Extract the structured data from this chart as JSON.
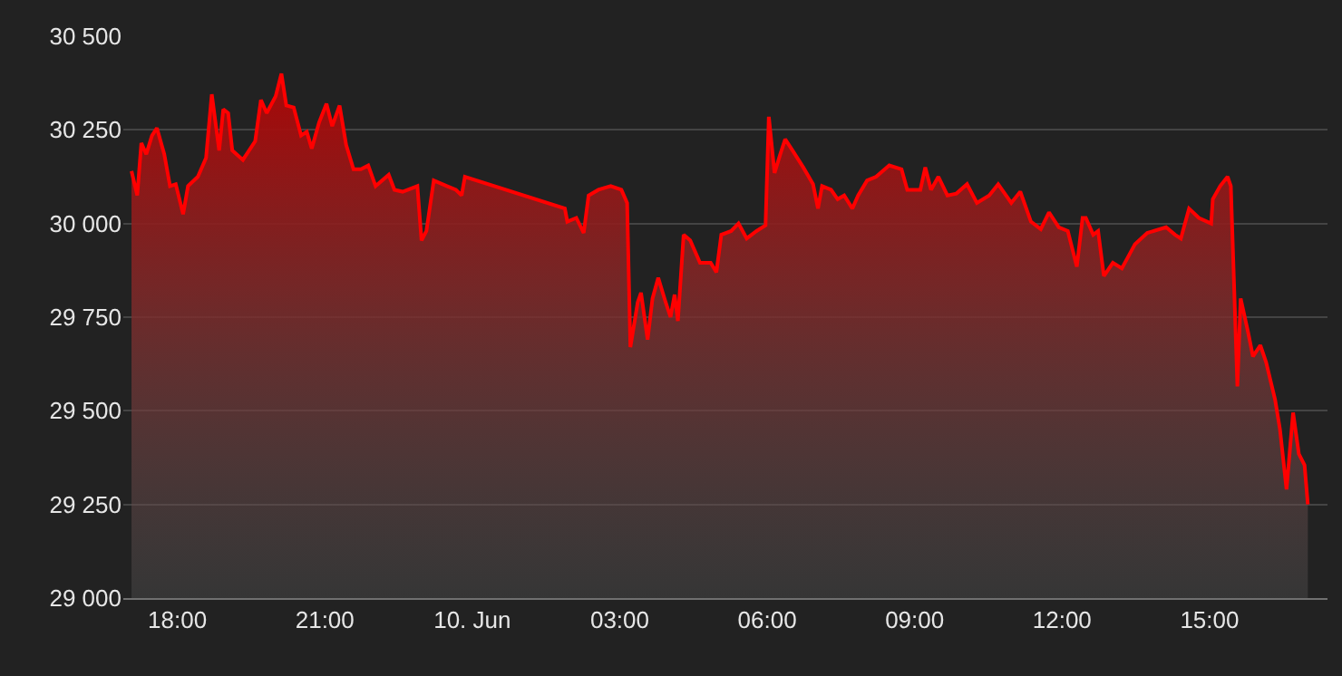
{
  "chart_data": {
    "type": "area",
    "x": [
      "--06-09T17:04",
      "--06-09T17:11",
      "--06-09T17:16",
      "--06-09T17:22",
      "--06-09T17:29",
      "--06-09T17:35",
      "--06-09T17:44",
      "--06-09T17:51",
      "--06-09T17:58",
      "--06-09T18:07",
      "--06-09T18:13",
      "--06-09T18:25",
      "--06-09T18:35",
      "--06-09T18:42",
      "--06-09T18:51",
      "--06-09T18:56",
      "--06-09T19:02",
      "--06-09T19:07",
      "--06-09T19:20",
      "--06-09T19:35",
      "--06-09T19:42",
      "--06-09T19:49",
      "--06-09T20:00",
      "--06-09T20:07",
      "--06-09T20:13",
      "--06-09T20:22",
      "--06-09T20:31",
      "--06-09T20:38",
      "--06-09T20:44",
      "--06-09T20:53",
      "--06-09T21:02",
      "--06-09T21:09",
      "--06-09T21:18",
      "--06-09T21:26",
      "--06-09T21:35",
      "--06-09T21:44",
      "--06-09T21:53",
      "--06-09T22:02",
      "--06-09T22:18",
      "--06-09T22:25",
      "--06-09T22:35",
      "--06-09T22:53",
      "--06-09T22:58",
      "--06-09T23:04",
      "--06-09T23:13",
      "--06-09T23:29",
      "--06-09T23:40",
      "--06-09T23:47",
      "--06-09T23:51",
      "--06-10T01:53",
      "--06-10T01:56",
      "--06-10T02:07",
      "--06-10T02:16",
      "--06-10T02:22",
      "--06-10T02:34",
      "--06-10T02:49",
      "--06-10T03:02",
      "--06-10T03:09",
      "--06-10T03:13",
      "--06-10T03:22",
      "--06-10T03:26",
      "--06-10T03:34",
      "--06-10T03:40",
      "--06-10T03:47",
      "--06-10T03:56",
      "--06-10T04:02",
      "--06-10T04:07",
      "--06-10T04:11",
      "--06-10T04:18",
      "--06-10T04:26",
      "--06-10T04:38",
      "--06-10T04:51",
      "--06-10T04:58",
      "--06-10T05:04",
      "--06-10T05:16",
      "--06-10T05:25",
      "--06-10T05:35",
      "--06-10T05:47",
      "--06-10T05:58",
      "--06-10T06:02",
      "--06-10T06:09",
      "--06-10T06:16",
      "--06-10T06:22",
      "--06-10T06:31",
      "--06-10T06:44",
      "--06-10T06:56",
      "--06-10T07:02",
      "--06-10T07:07",
      "--06-10T07:18",
      "--06-10T07:26",
      "--06-10T07:34",
      "--06-10T07:44",
      "--06-10T07:51",
      "--06-10T08:02",
      "--06-10T08:13",
      "--06-10T08:29",
      "--06-10T08:44",
      "--06-10T08:51",
      "--06-10T09:07",
      "--06-10T09:13",
      "--06-10T09:20",
      "--06-10T09:29",
      "--06-10T09:40",
      "--06-10T09:51",
      "--06-10T10:04",
      "--06-10T10:16",
      "--06-10T10:31",
      "--06-10T10:42",
      "--06-10T10:58",
      "--06-10T11:09",
      "--06-10T11:22",
      "--06-10T11:34",
      "--06-10T11:44",
      "--06-10T11:56",
      "--06-10T12:07",
      "--06-10T12:18",
      "--06-10T12:25",
      "--06-10T12:29",
      "--06-10T12:38",
      "--06-10T12:44",
      "--06-10T12:51",
      "--06-10T13:02",
      "--06-10T13:13",
      "--06-10T13:29",
      "--06-10T13:44",
      "--06-10T14:07",
      "--06-10T14:18",
      "--06-10T14:25",
      "--06-10T14:35",
      "--06-10T14:47",
      "--06-10T15:02",
      "--06-10T15:04",
      "--06-10T15:13",
      "--06-10T15:22",
      "--06-10T15:26",
      "--06-10T15:34",
      "--06-10T15:38",
      "--06-10T15:47",
      "--06-10T15:53",
      "--06-10T16:02",
      "--06-10T16:09",
      "--06-10T16:20",
      "--06-10T16:26",
      "--06-10T16:34",
      "--06-10T16:42",
      "--06-10T16:49",
      "--06-10T16:56",
      "--06-10T17:00"
    ],
    "series": [
      {
        "color": "#ff0000",
        "values": [
          30140,
          30075,
          30215,
          30185,
          30235,
          30255,
          30185,
          30100,
          30105,
          30025,
          30100,
          30125,
          30175,
          30345,
          30195,
          30305,
          30295,
          30195,
          30170,
          30220,
          30330,
          30295,
          30340,
          30400,
          30315,
          30310,
          30235,
          30245,
          30200,
          30270,
          30320,
          30260,
          30315,
          30210,
          30145,
          30145,
          30155,
          30100,
          30130,
          30090,
          30085,
          30100,
          29955,
          29980,
          30115,
          30100,
          30090,
          30075,
          30125,
          30040,
          30005,
          30015,
          29975,
          30075,
          30090,
          30100,
          30090,
          30055,
          29670,
          29790,
          29815,
          29690,
          29800,
          29855,
          29790,
          29750,
          29810,
          29740,
          29970,
          29955,
          29895,
          29895,
          29870,
          29970,
          29980,
          30000,
          29960,
          29980,
          29995,
          30285,
          30135,
          30185,
          30225,
          30195,
          30150,
          30105,
          30040,
          30100,
          30090,
          30065,
          30075,
          30040,
          30075,
          30115,
          30125,
          30155,
          30145,
          30090,
          30090,
          30150,
          30090,
          30125,
          30075,
          30080,
          30105,
          30055,
          30075,
          30105,
          30055,
          30085,
          30005,
          29985,
          30030,
          29990,
          29980,
          29885,
          30015,
          30015,
          29970,
          29980,
          29860,
          29895,
          29880,
          29945,
          29975,
          29990,
          29970,
          29960,
          30040,
          30015,
          30000,
          30065,
          30100,
          30125,
          30100,
          29565,
          29800,
          29710,
          29645,
          29675,
          29630,
          29530,
          29450,
          29290,
          29495,
          29385,
          29355,
          29250
        ]
      }
    ],
    "xlim": [
      "--06-09T16:54",
      "--06-10T17:24"
    ],
    "xticks": [
      {
        "value": "--06-09T18:00",
        "label": "18:00"
      },
      {
        "value": "--06-09T21:00",
        "label": "21:00"
      },
      {
        "value": "--06-10T00:00",
        "label": "10. Jun"
      },
      {
        "value": "--06-10T03:00",
        "label": "03:00"
      },
      {
        "value": "--06-10T06:00",
        "label": "06:00"
      },
      {
        "value": "--06-10T09:00",
        "label": "09:00"
      },
      {
        "value": "--06-10T12:00",
        "label": "12:00"
      },
      {
        "value": "--06-10T15:00",
        "label": "15:00"
      }
    ],
    "ylim": [
      29000,
      30500
    ],
    "yticks": [
      {
        "value": 29000,
        "label": "29 000"
      },
      {
        "value": 29250,
        "label": "29 250"
      },
      {
        "value": 29500,
        "label": "29 500"
      },
      {
        "value": 29750,
        "label": "29 750"
      },
      {
        "value": 30000,
        "label": "30 000"
      },
      {
        "value": 30250,
        "label": "30 250"
      },
      {
        "value": 30500,
        "label": "30 500"
      }
    ],
    "grid": "y"
  }
}
